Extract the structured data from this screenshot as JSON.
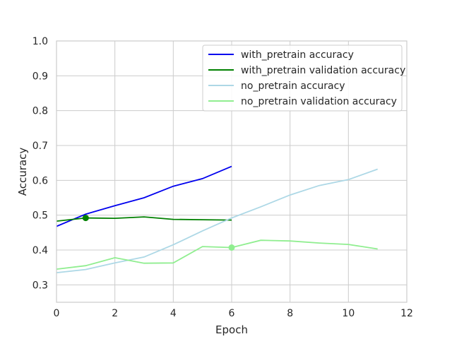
{
  "chart_data": {
    "type": "line",
    "title": "",
    "xlabel": "Epoch",
    "ylabel": "Accuracy",
    "xlim": [
      0,
      12
    ],
    "ylim": [
      0.25,
      1.0
    ],
    "xticks": [
      0,
      2,
      4,
      6,
      8,
      10,
      12
    ],
    "yticks": [
      0.3,
      0.4,
      0.5,
      0.6,
      0.7,
      0.8,
      0.9,
      1.0
    ],
    "grid": true,
    "legend_position": "top-right",
    "series": [
      {
        "name": "with_pretrain accuracy",
        "color": "#0000ee",
        "x": [
          0,
          1,
          2,
          3,
          4,
          5,
          6
        ],
        "y": [
          0.468,
          0.503,
          0.527,
          0.55,
          0.583,
          0.605,
          0.64
        ]
      },
      {
        "name": "with_pretrain validation accuracy",
        "color": "#008000",
        "x": [
          0,
          1,
          2,
          3,
          4,
          5,
          6
        ],
        "y": [
          0.483,
          0.492,
          0.491,
          0.495,
          0.488,
          0.487,
          0.486
        ],
        "marker": {
          "x": 1,
          "y": 0.492
        }
      },
      {
        "name": "no_pretrain accuracy",
        "color": "#add8e6",
        "x": [
          0,
          1,
          2,
          3,
          4,
          5,
          6,
          7,
          8,
          9,
          10,
          11
        ],
        "y": [
          0.335,
          0.344,
          0.363,
          0.38,
          0.415,
          0.455,
          0.492,
          0.524,
          0.558,
          0.585,
          0.602,
          0.632
        ]
      },
      {
        "name": "no_pretrain validation accuracy",
        "color": "#90ee90",
        "x": [
          0,
          1,
          2,
          3,
          4,
          5,
          6,
          7,
          8,
          9,
          10,
          11
        ],
        "y": [
          0.345,
          0.355,
          0.378,
          0.362,
          0.363,
          0.41,
          0.407,
          0.428,
          0.426,
          0.42,
          0.416,
          0.403
        ],
        "marker": {
          "x": 6,
          "y": 0.407
        }
      }
    ]
  }
}
